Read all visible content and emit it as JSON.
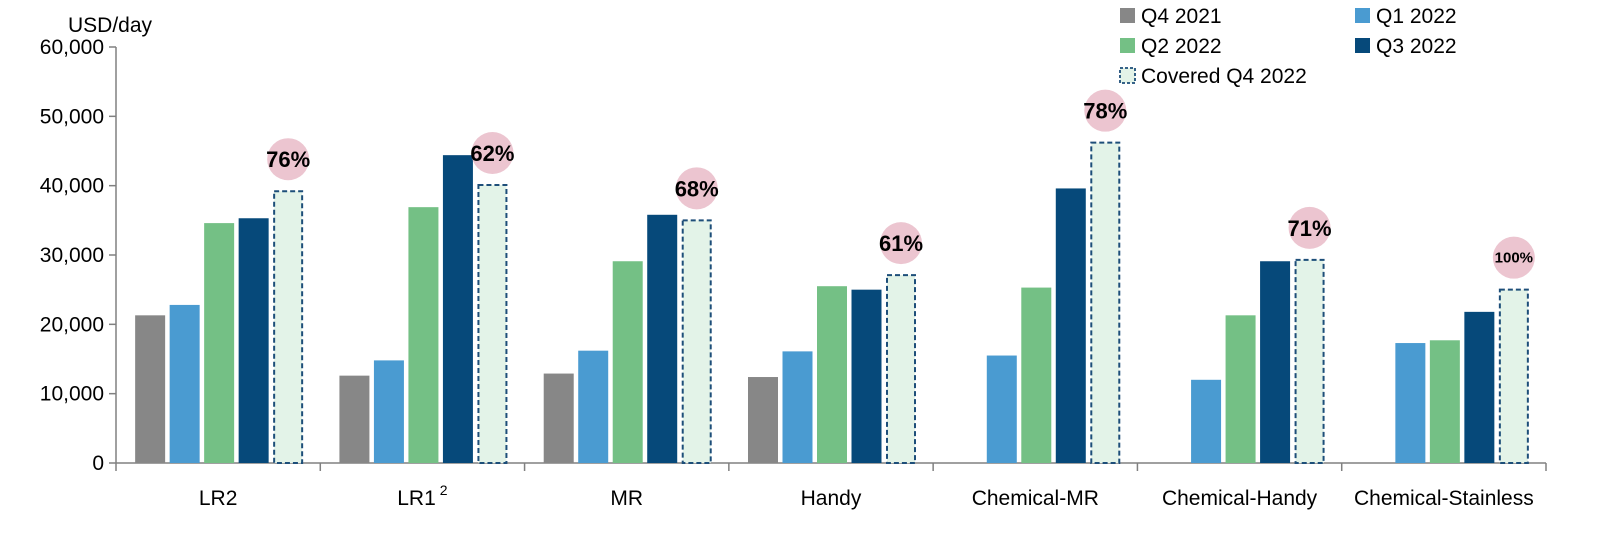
{
  "chart_data": {
    "type": "bar",
    "ylabel": "USD/day",
    "ylim": [
      0,
      60000
    ],
    "yticks": [
      "0",
      "10,000",
      "20,000",
      "30,000",
      "40,000",
      "50,000",
      "60,000"
    ],
    "categories": [
      "LR2",
      "LR1",
      "MR",
      "Handy",
      "Chemical-MR",
      "Chemical-Handy",
      "Chemical-Stainless"
    ],
    "category_superscripts": [
      "",
      "2",
      "",
      "",
      "",
      "",
      ""
    ],
    "series": [
      {
        "name": "Q4 2021",
        "color": "#878787",
        "style": "solid",
        "values": [
          21300,
          12600,
          12900,
          12400,
          null,
          null,
          null
        ]
      },
      {
        "name": "Q1 2022",
        "color": "#4a9bd1",
        "style": "solid",
        "values": [
          22800,
          14800,
          16200,
          16100,
          15500,
          12000,
          17300
        ]
      },
      {
        "name": "Q2 2022",
        "color": "#74c085",
        "style": "solid",
        "values": [
          34600,
          36900,
          29100,
          25500,
          25300,
          21300,
          17700
        ]
      },
      {
        "name": "Q3 2022",
        "color": "#06497a",
        "style": "solid",
        "values": [
          35300,
          44400,
          35800,
          25000,
          39600,
          29100,
          21800
        ]
      },
      {
        "name": "Covered Q4 2022",
        "color": "#e3f3e8",
        "border": "#1d4e79",
        "style": "dashed",
        "values": [
          39200,
          40100,
          35000,
          27100,
          46200,
          29300,
          25000
        ]
      }
    ],
    "annotations": [
      "76%",
      "62%",
      "68%",
      "61%",
      "78%",
      "71%",
      "100%"
    ],
    "annotation_color": "#ecc5d0",
    "legend_position": "top-right"
  }
}
